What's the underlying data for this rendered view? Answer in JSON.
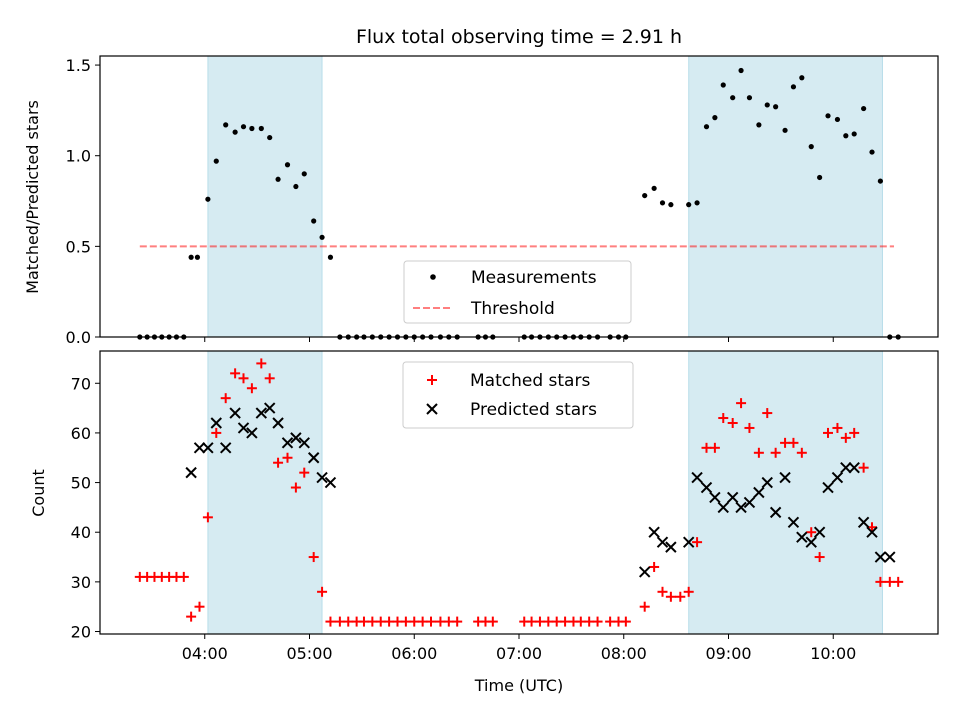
{
  "title": "Flux total observing time = 2.91 h",
  "colors": {
    "band": "#add8e6",
    "threshold": "#ff0000",
    "measurement": "#000000",
    "matched": "#ff0000",
    "predicted": "#000000"
  },
  "chart_data": [
    {
      "type": "scatter",
      "panel": "top",
      "title": "Flux total observing time = 2.91 h",
      "xlabel": "",
      "ylabel": "Matched/Predicted stars",
      "x_is_time_hours": true,
      "xlim": [
        3.0,
        11.0
      ],
      "ylim": [
        0.0,
        1.55
      ],
      "yticks": [
        0.0,
        0.5,
        1.0,
        1.5
      ],
      "yticklabels": [
        "0.0",
        "0.5",
        "1.0",
        "1.5"
      ],
      "xticks": [
        4,
        5,
        6,
        7,
        8,
        9,
        10
      ],
      "shaded_intervals": [
        [
          4.03,
          5.12
        ],
        [
          8.62,
          10.47
        ]
      ],
      "legend": {
        "position": "lower center",
        "entries": [
          "Measurements",
          "Threshold"
        ]
      },
      "threshold": {
        "name": "Threshold",
        "y": 0.5,
        "x_range": [
          3.38,
          10.58
        ]
      },
      "series": [
        {
          "name": "Measurements",
          "marker": "dot",
          "x": [
            3.38,
            3.45,
            3.52,
            3.59,
            3.66,
            3.73,
            3.8,
            3.87,
            3.93,
            4.03,
            4.11,
            4.2,
            4.29,
            4.37,
            4.45,
            4.54,
            4.62,
            4.7,
            4.79,
            4.87,
            4.95,
            5.04,
            5.12,
            5.2,
            5.29,
            5.37,
            5.45,
            5.52,
            5.6,
            5.68,
            5.76,
            5.84,
            5.92,
            6.0,
            6.08,
            6.16,
            6.25,
            6.33,
            6.41,
            6.61,
            6.68,
            6.75,
            7.05,
            7.12,
            7.2,
            7.28,
            7.36,
            7.44,
            7.52,
            7.59,
            7.67,
            7.75,
            7.87,
            7.95,
            8.02,
            8.2,
            8.29,
            8.37,
            8.45,
            8.62,
            8.7,
            8.79,
            8.87,
            8.95,
            9.04,
            9.12,
            9.2,
            9.29,
            9.37,
            9.45,
            9.54,
            9.62,
            9.7,
            9.79,
            9.87,
            9.95,
            10.04,
            10.12,
            10.2,
            10.29,
            10.37,
            10.45,
            10.54,
            10.62
          ],
          "y": [
            0,
            0,
            0,
            0,
            0,
            0,
            0,
            0.44,
            0.44,
            0.76,
            0.97,
            1.17,
            1.13,
            1.16,
            1.15,
            1.15,
            1.1,
            0.87,
            0.95,
            0.83,
            0.9,
            0.64,
            0.55,
            0.44,
            0,
            0,
            0,
            0,
            0,
            0,
            0,
            0,
            0,
            0,
            0,
            0,
            0,
            0,
            0,
            0,
            0,
            0,
            0,
            0,
            0,
            0,
            0,
            0,
            0,
            0,
            0,
            0,
            0,
            0,
            0,
            0.78,
            0.82,
            0.74,
            0.73,
            0.73,
            0.74,
            1.16,
            1.21,
            1.39,
            1.32,
            1.47,
            1.32,
            1.17,
            1.28,
            1.27,
            1.14,
            1.38,
            1.43,
            1.05,
            0.88,
            1.22,
            1.2,
            1.11,
            1.12,
            1.26,
            1.02,
            0.86,
            0,
            0
          ]
        }
      ]
    },
    {
      "type": "scatter",
      "panel": "bottom",
      "title": "",
      "xlabel": "Time (UTC)",
      "ylabel": "Count",
      "x_is_time_hours": true,
      "xlim": [
        3.0,
        11.0
      ],
      "ylim": [
        19.5,
        76.5
      ],
      "yticks": [
        20,
        30,
        40,
        50,
        60,
        70
      ],
      "yticklabels": [
        "20",
        "30",
        "40",
        "50",
        "60",
        "70"
      ],
      "xticks": [
        4,
        5,
        6,
        7,
        8,
        9,
        10
      ],
      "xticklabels": [
        "04:00",
        "05:00",
        "06:00",
        "07:00",
        "08:00",
        "09:00",
        "10:00"
      ],
      "shaded_intervals": [
        [
          4.03,
          5.12
        ],
        [
          8.62,
          10.47
        ]
      ],
      "legend": {
        "position": "upper center",
        "entries": [
          "Matched stars",
          "Predicted stars"
        ]
      },
      "series": [
        {
          "name": "Matched stars",
          "marker": "plus",
          "x": [
            3.38,
            3.45,
            3.52,
            3.59,
            3.66,
            3.73,
            3.8,
            3.87,
            3.95,
            4.03,
            4.11,
            4.2,
            4.29,
            4.37,
            4.45,
            4.54,
            4.62,
            4.7,
            4.79,
            4.87,
            4.95,
            5.04,
            5.12,
            5.2,
            5.29,
            5.37,
            5.45,
            5.52,
            5.6,
            5.68,
            5.76,
            5.84,
            5.92,
            6.0,
            6.08,
            6.16,
            6.25,
            6.33,
            6.41,
            6.61,
            6.68,
            6.75,
            7.05,
            7.12,
            7.2,
            7.28,
            7.36,
            7.44,
            7.52,
            7.59,
            7.67,
            7.75,
            7.87,
            7.95,
            8.02,
            8.2,
            8.29,
            8.37,
            8.45,
            8.54,
            8.62,
            8.7,
            8.79,
            8.87,
            8.95,
            9.04,
            9.12,
            9.2,
            9.29,
            9.37,
            9.45,
            9.54,
            9.62,
            9.7,
            9.79,
            9.87,
            9.95,
            10.04,
            10.12,
            10.2,
            10.29,
            10.37,
            10.45,
            10.54,
            10.62
          ],
          "y": [
            31,
            31,
            31,
            31,
            31,
            31,
            31,
            23,
            25,
            43,
            60,
            67,
            72,
            71,
            69,
            74,
            71,
            54,
            55,
            49,
            52,
            35,
            28,
            22,
            22,
            22,
            22,
            22,
            22,
            22,
            22,
            22,
            22,
            22,
            22,
            22,
            22,
            22,
            22,
            22,
            22,
            22,
            22,
            22,
            22,
            22,
            22,
            22,
            22,
            22,
            22,
            22,
            22,
            22,
            22,
            25,
            33,
            28,
            27,
            27,
            28,
            38,
            57,
            57,
            63,
            62,
            66,
            61,
            56,
            64,
            56,
            58,
            58,
            56,
            40,
            35,
            60,
            61,
            59,
            60,
            53,
            41,
            30,
            30,
            30
          ]
        },
        {
          "name": "Predicted stars",
          "marker": "x",
          "x": [
            3.87,
            3.95,
            4.03,
            4.11,
            4.2,
            4.29,
            4.37,
            4.45,
            4.54,
            4.62,
            4.7,
            4.79,
            4.87,
            4.95,
            5.04,
            5.12,
            5.2,
            8.2,
            8.29,
            8.37,
            8.45,
            8.62,
            8.7,
            8.79,
            8.87,
            8.95,
            9.04,
            9.12,
            9.2,
            9.29,
            9.37,
            9.45,
            9.54,
            9.62,
            9.7,
            9.79,
            9.87,
            9.95,
            10.04,
            10.12,
            10.2,
            10.29,
            10.37,
            10.45,
            10.54
          ],
          "y": [
            52,
            57,
            57,
            62,
            57,
            64,
            61,
            60,
            64,
            65,
            62,
            58,
            59,
            58,
            55,
            51,
            50,
            32,
            40,
            38,
            37,
            38,
            51,
            49,
            47,
            45,
            47,
            45,
            46,
            48,
            50,
            44,
            51,
            42,
            39,
            38,
            40,
            49,
            51,
            53,
            53,
            42,
            40,
            35,
            35
          ]
        }
      ]
    }
  ]
}
